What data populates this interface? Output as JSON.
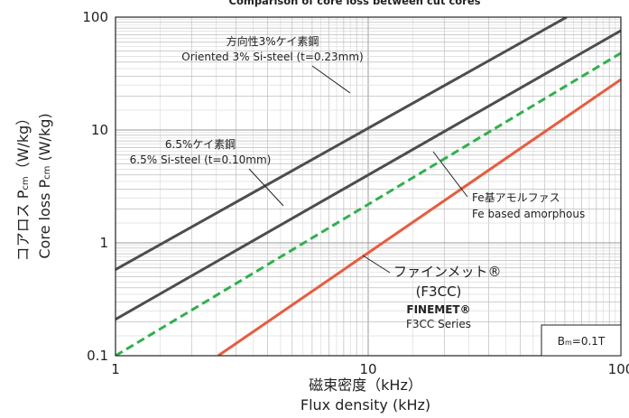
{
  "chart_data": {
    "type": "line",
    "title": "Comparison of core loss between cut cores",
    "xlabel_jp": "磁束密度（kHz）",
    "xlabel": "Flux density (kHz)",
    "ylabel_jp": "コアロス Pcm（W/kg）",
    "ylabel": "Core loss Pcm (W/kg)",
    "x_scale": "log",
    "y_scale": "log",
    "xlim": [
      1,
      100
    ],
    "ylim": [
      0.1,
      100
    ],
    "x_ticks": [
      "1",
      "10",
      "100"
    ],
    "y_ticks": [
      "0.1",
      "1",
      "10",
      "100"
    ],
    "grid": true,
    "annotation_bm": "Bm=0.1T",
    "series": [
      {
        "name": "Oriented 3% Si-steel (t=0.23mm)",
        "label_jp": "方向性3%ケイ素鋼",
        "label_en": "Oriented 3% Si-steel (t=0.23mm)",
        "color": "#4d4d4f",
        "dash": "solid",
        "points": [
          [
            1,
            0.58
          ],
          [
            61,
            100
          ]
        ]
      },
      {
        "name": "6.5% Si-steel (t=0.10mm)",
        "label_jp": "6.5%ケイ素鋼",
        "label_en": "6.5% Si-steel (t=0.10mm)",
        "color": "#4d4d4f",
        "dash": "solid",
        "points": [
          [
            1,
            0.21
          ],
          [
            100,
            76
          ]
        ]
      },
      {
        "name": "Fe based amorphous",
        "label_jp": "Fe基アモルファス",
        "label_en": "Fe based amorphous",
        "color": "#2db24a",
        "dash": "dashed",
        "points": [
          [
            1,
            0.1
          ],
          [
            100,
            48
          ]
        ]
      },
      {
        "name": "FINEMET F3CC Series",
        "label_jp": "ファインメット®",
        "label_jp2": "(F3CC)",
        "label_en": "FINEMET®",
        "label_en2": "F3CC Series",
        "color": "#ec5a3c",
        "dash": "solid",
        "points": [
          [
            2.55,
            0.1
          ],
          [
            100,
            28
          ]
        ]
      }
    ]
  }
}
